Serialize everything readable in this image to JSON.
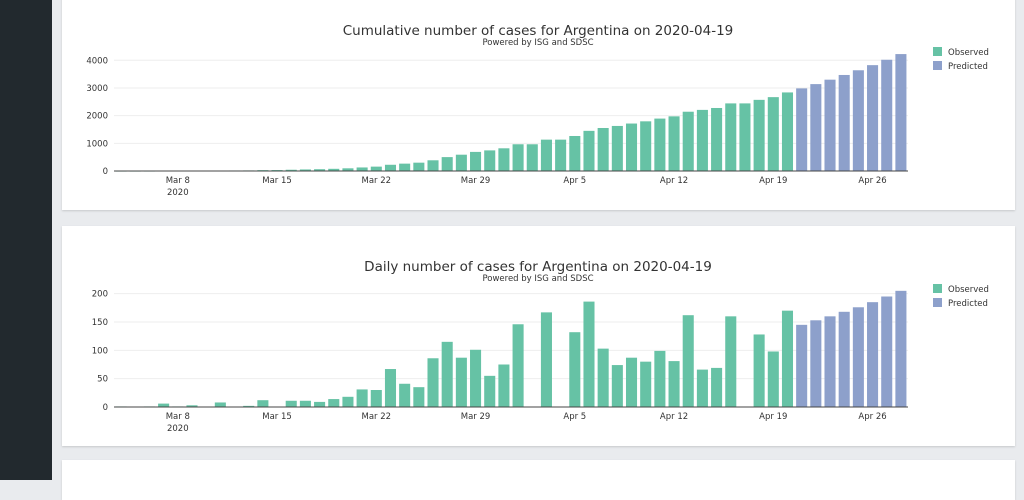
{
  "colors": {
    "observed": "#66c2a5",
    "predicted": "#8da0cb",
    "sidebar": "#22292e",
    "background": "#e9ebee",
    "card": "#ffffff"
  },
  "chart_data": [
    {
      "type": "bar",
      "title": "Cumulative number of cases for Argentina on 2020-04-19",
      "subtitle": "Powered by ISG and SDSC",
      "xlabel": "",
      "ylabel": "",
      "ylim": [
        0,
        4300
      ],
      "yticks": [
        0,
        1000,
        2000,
        3000,
        4000
      ],
      "ytick_labels": [
        "0",
        "1000",
        "2000",
        "3000",
        "4000"
      ],
      "x_start": "2020-03-04",
      "xticks": [
        {
          "day": 4,
          "label": "Mar 8",
          "label2": "2020"
        },
        {
          "day": 11,
          "label": "Mar 15"
        },
        {
          "day": 18,
          "label": "Mar 22"
        },
        {
          "day": 25,
          "label": "Mar 29"
        },
        {
          "day": 32,
          "label": "Apr 5"
        },
        {
          "day": 39,
          "label": "Apr 12"
        },
        {
          "day": 46,
          "label": "Apr 19"
        },
        {
          "day": 53,
          "label": "Apr 26"
        }
      ],
      "legend": {
        "position": "top-right",
        "entries": [
          "Observed",
          "Predicted"
        ]
      },
      "series": [
        {
          "name": "Observed",
          "start_day": 0,
          "values": [
            1,
            1,
            2,
            8,
            9,
            12,
            12,
            17,
            19,
            21,
            31,
            34,
            45,
            56,
            65,
            79,
            97,
            128,
            158,
            225,
            266,
            301,
            387,
            502,
            589,
            690,
            745,
            820,
            966,
            966,
            1133,
            1133,
            1265,
            1451,
            1554,
            1628,
            1715,
            1795,
            1894,
            1975,
            2142,
            2208,
            2277,
            2443,
            2443,
            2571,
            2669,
            2839
          ]
        },
        {
          "name": "Predicted",
          "start_day": 48,
          "values": [
            2985,
            3140,
            3300,
            3470,
            3640,
            3825,
            4020,
            4225
          ]
        }
      ]
    },
    {
      "type": "bar",
      "title": "Daily number of cases for Argentina on 2020-04-19",
      "subtitle": "Powered by ISG and SDSC",
      "xlabel": "",
      "ylabel": "",
      "ylim": [
        0,
        210
      ],
      "yticks": [
        0,
        50,
        100,
        150,
        200
      ],
      "ytick_labels": [
        "0",
        "50",
        "100",
        "150",
        "200"
      ],
      "x_start": "2020-03-04",
      "xticks": [
        {
          "day": 4,
          "label": "Mar 8",
          "label2": "2020"
        },
        {
          "day": 11,
          "label": "Mar 15"
        },
        {
          "day": 18,
          "label": "Mar 22"
        },
        {
          "day": 25,
          "label": "Mar 29"
        },
        {
          "day": 32,
          "label": "Apr 5"
        },
        {
          "day": 39,
          "label": "Apr 12"
        },
        {
          "day": 46,
          "label": "Apr 19"
        },
        {
          "day": 53,
          "label": "Apr 26"
        }
      ],
      "legend": {
        "position": "top-right",
        "entries": [
          "Observed",
          "Predicted"
        ]
      },
      "series": [
        {
          "name": "Observed",
          "start_day": 0,
          "values": [
            1,
            0,
            1,
            6,
            1,
            3,
            0,
            8,
            0,
            2,
            12,
            0,
            11,
            11,
            9,
            14,
            18,
            31,
            30,
            67,
            41,
            35,
            86,
            115,
            87,
            101,
            55,
            75,
            146,
            0,
            167,
            0,
            132,
            186,
            103,
            74,
            87,
            80,
            99,
            81,
            162,
            66,
            69,
            160,
            0,
            128,
            98,
            170
          ]
        },
        {
          "name": "Predicted",
          "start_day": 48,
          "values": [
            145,
            153,
            160,
            168,
            176,
            185,
            195,
            205
          ]
        }
      ]
    }
  ]
}
